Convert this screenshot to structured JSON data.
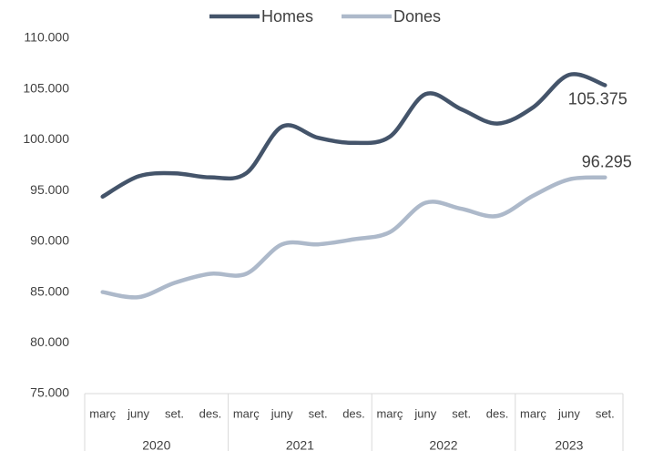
{
  "chart_data": {
    "type": "line",
    "categories": [
      "març",
      "juny",
      "set.",
      "des.",
      "març",
      "juny",
      "set.",
      "des.",
      "març",
      "juny",
      "set.",
      "des.",
      "març",
      "juny",
      "set."
    ],
    "category_groups": [
      {
        "label": "2020",
        "count": 4
      },
      {
        "label": "2021",
        "count": 4
      },
      {
        "label": "2022",
        "count": 4
      },
      {
        "label": "2023",
        "count": 3
      }
    ],
    "series": [
      {
        "name": "Homes",
        "color": "#44546a",
        "values": [
          94400,
          96400,
          96700,
          96300,
          96700,
          101300,
          100200,
          99700,
          100300,
          104500,
          103000,
          101600,
          103200,
          106400,
          105375
        ],
        "value_labels": [
          null,
          null,
          null,
          null,
          null,
          null,
          null,
          null,
          null,
          null,
          null,
          null,
          null,
          null,
          "105.375"
        ]
      },
      {
        "name": "Dones",
        "color": "#adb9ca",
        "values": [
          85000,
          84500,
          85900,
          86800,
          86800,
          89700,
          89700,
          90200,
          90900,
          93800,
          93200,
          92500,
          94500,
          96100,
          96295
        ],
        "value_labels": [
          null,
          null,
          null,
          null,
          null,
          null,
          null,
          null,
          null,
          null,
          null,
          null,
          null,
          null,
          "96.295"
        ]
      }
    ],
    "ylim": [
      75000,
      110000
    ],
    "yticks": [
      {
        "value": 75000,
        "label": "75.000"
      },
      {
        "value": 80000,
        "label": "80.000"
      },
      {
        "value": 85000,
        "label": "85.000"
      },
      {
        "value": 90000,
        "label": "90.000"
      },
      {
        "value": 95000,
        "label": "95.000"
      },
      {
        "value": 100000,
        "label": "100.000"
      },
      {
        "value": 105000,
        "label": "105.000"
      },
      {
        "value": 110000,
        "label": "110.000"
      }
    ],
    "grid": false,
    "smooth": true,
    "legend": "top"
  }
}
